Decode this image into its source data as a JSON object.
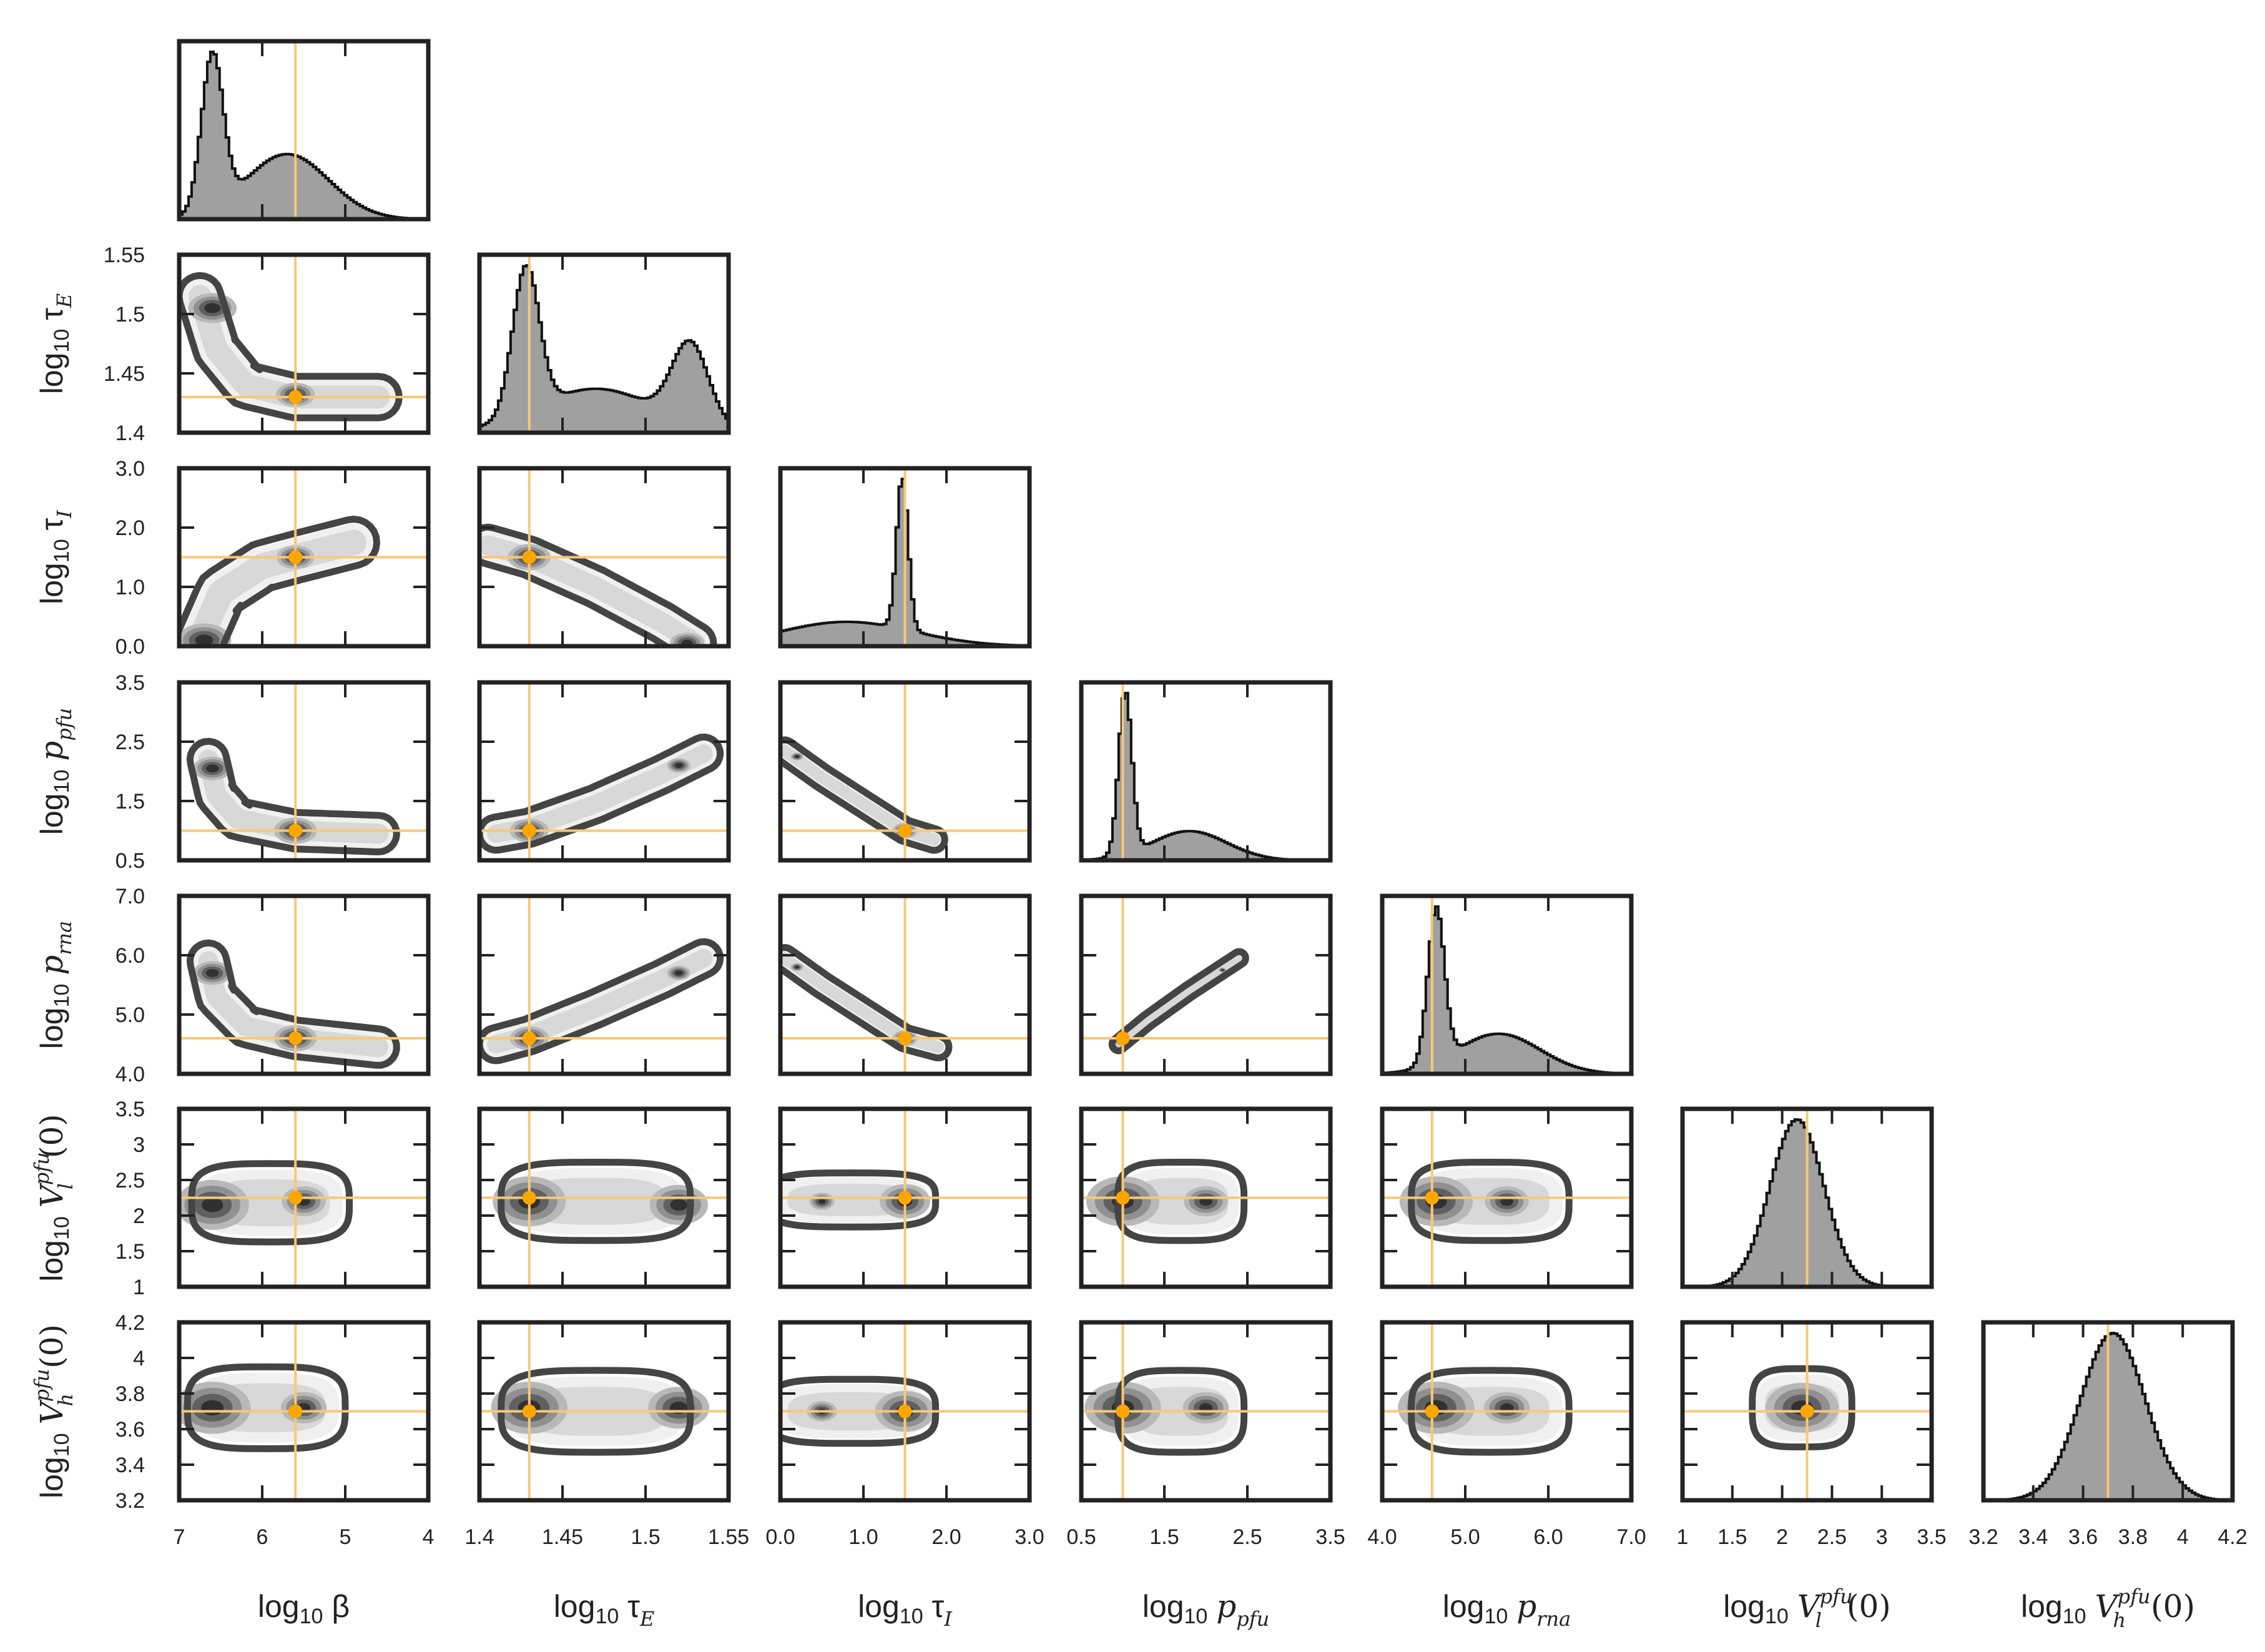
{
  "chart_data": {
    "type": "corner",
    "title": "",
    "truth_color": "#f8c878",
    "truth_marker_color": "#ffa500",
    "hist_fill": "#a0a0a0",
    "contour_color": "#444444",
    "parameters": [
      {
        "name": "log_beta",
        "symbol": "β",
        "sub": "",
        "label_prefix": "log",
        "label_sub": "10",
        "range": [
          7,
          4
        ],
        "truth": 5.6,
        "ticks": [
          "7",
          "6",
          "5",
          "4"
        ],
        "tick_values": [
          7,
          6,
          5,
          4
        ]
      },
      {
        "name": "log_tau_E",
        "symbol": "τ",
        "sub": "E",
        "label_prefix": "log",
        "label_sub": "10",
        "range": [
          1.4,
          1.55
        ],
        "truth": 1.43,
        "ticks": [
          "1.4",
          "1.45",
          "1.5",
          "1.55"
        ],
        "tick_values": [
          1.4,
          1.45,
          1.5,
          1.55
        ]
      },
      {
        "name": "log_tau_I",
        "symbol": "τ",
        "sub": "I",
        "label_prefix": "log",
        "label_sub": "10",
        "range": [
          0.0,
          3.0
        ],
        "truth": 1.5,
        "ticks": [
          "0.0",
          "1.0",
          "2.0",
          "3.0"
        ],
        "tick_values": [
          0,
          1,
          2,
          3
        ]
      },
      {
        "name": "log_p_pfu",
        "symbol": "p",
        "sub": "pfu",
        "label_prefix": "log",
        "label_sub": "10",
        "range": [
          0.5,
          3.5
        ],
        "truth": 1.0,
        "ticks": [
          "0.5",
          "1.5",
          "2.5",
          "3.5"
        ],
        "tick_values": [
          0.5,
          1.5,
          2.5,
          3.5
        ]
      },
      {
        "name": "log_p_rna",
        "symbol": "p",
        "sub": "rna",
        "label_prefix": "log",
        "label_sub": "10",
        "range": [
          4.0,
          7.0
        ],
        "truth": 4.6,
        "ticks": [
          "4.0",
          "5.0",
          "6.0",
          "7.0"
        ],
        "tick_values": [
          4,
          5,
          6,
          7
        ]
      },
      {
        "name": "log_V_l_pfu_0",
        "symbol": "V",
        "sub": "l",
        "sup": "pfu",
        "tail": "(0)",
        "label_prefix": "log",
        "label_sub": "10",
        "range": [
          1,
          3.5
        ],
        "truth": 2.25,
        "ticks": [
          "1",
          "1.5",
          "2",
          "2.5",
          "3",
          "3.5"
        ],
        "tick_values": [
          1,
          1.5,
          2,
          2.5,
          3,
          3.5
        ]
      },
      {
        "name": "log_V_h_pfu_0",
        "symbol": "V",
        "sub": "h",
        "sup": "pfu",
        "tail": "(0)",
        "label_prefix": "log",
        "label_sub": "10",
        "range": [
          3.2,
          4.2
        ],
        "truth": 3.7,
        "ticks": [
          "3.2",
          "3.4",
          "3.6",
          "3.8",
          "4",
          "4.2"
        ],
        "tick_values": [
          3.2,
          3.4,
          3.6,
          3.8,
          4.0,
          4.2
        ]
      }
    ],
    "marginals": [
      {
        "param": "log_beta",
        "components": [
          {
            "mu": 6.6,
            "sd": 0.13,
            "w": 1.0
          },
          {
            "mu": 5.7,
            "sd": 0.5,
            "w": 0.42
          }
        ]
      },
      {
        "param": "log_tau_E",
        "components": [
          {
            "mu": 1.428,
            "sd": 0.008,
            "w": 1.0
          },
          {
            "mu": 1.527,
            "sd": 0.011,
            "w": 0.55
          },
          {
            "mu": 1.47,
            "sd": 0.035,
            "w": 0.3
          }
        ]
      },
      {
        "param": "log_tau_I",
        "components": [
          {
            "mu": 1.47,
            "sd": 0.07,
            "w": 1.0
          },
          {
            "mu": 0.8,
            "sd": 0.8,
            "w": 0.16
          }
        ]
      },
      {
        "param": "log_p_pfu",
        "components": [
          {
            "mu": 1.03,
            "sd": 0.08,
            "w": 1.0
          },
          {
            "mu": 1.8,
            "sd": 0.45,
            "w": 0.18
          }
        ]
      },
      {
        "param": "log_p_rna",
        "components": [
          {
            "mu": 4.65,
            "sd": 0.1,
            "w": 1.0
          },
          {
            "mu": 5.4,
            "sd": 0.5,
            "w": 0.26
          }
        ]
      },
      {
        "param": "log_V_l_pfu_0",
        "components": [
          {
            "mu": 2.15,
            "sd": 0.27,
            "w": 1.0
          }
        ]
      },
      {
        "param": "log_V_h_pfu_0",
        "components": [
          {
            "mu": 3.72,
            "sd": 0.13,
            "w": 1.0
          }
        ]
      }
    ]
  }
}
